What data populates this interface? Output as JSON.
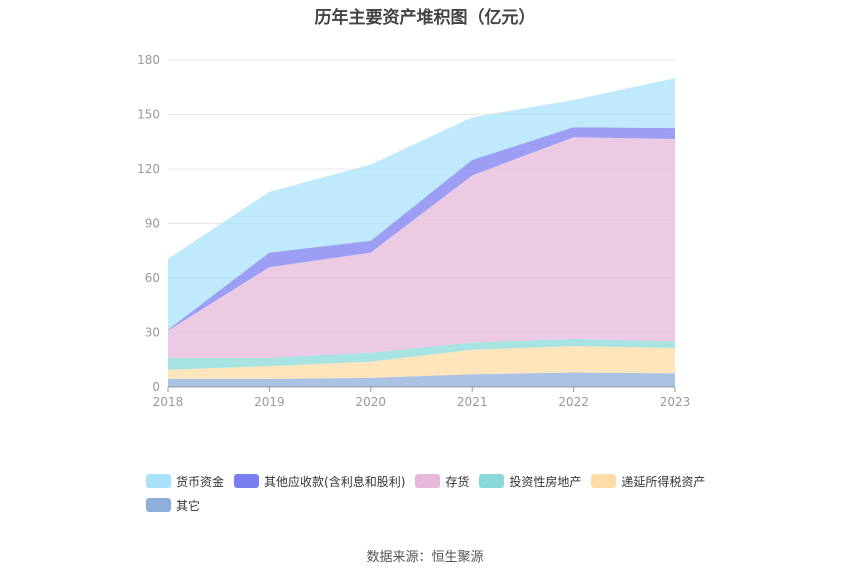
{
  "chart_data": {
    "type": "area",
    "stacked": true,
    "title": "历年主要资产堆积图（亿元）",
    "categories": [
      "2018",
      "2019",
      "2020",
      "2021",
      "2022",
      "2023"
    ],
    "ylim": [
      0,
      180
    ],
    "yticks": [
      0,
      30,
      60,
      90,
      120,
      150,
      180
    ],
    "grid": true,
    "legend_position": "bottom",
    "series": [
      {
        "name": "其它",
        "color": "#8eaedb",
        "values": [
          4.5,
          4.5,
          5,
          7,
          8,
          7.5
        ]
      },
      {
        "name": "递延所得税资产",
        "color": "#fedca6",
        "values": [
          5,
          7,
          9,
          13.5,
          14.5,
          14
        ]
      },
      {
        "name": "投资性房地产",
        "color": "#8ad9da",
        "values": [
          6.5,
          4.5,
          5,
          4,
          4,
          3.5
        ]
      },
      {
        "name": "存货",
        "color": "#e7b8d9",
        "values": [
          15,
          50,
          55,
          92,
          111,
          111.5
        ]
      },
      {
        "name": "其他应收款(含利息和股利)",
        "color": "#7b7ef0",
        "values": [
          0.5,
          8,
          6.5,
          8.5,
          5.5,
          6
        ]
      },
      {
        "name": "货币资金",
        "color": "#a9e3fb",
        "values": [
          39,
          33.5,
          42,
          23.5,
          15,
          27.5
        ]
      }
    ],
    "legend_order": [
      "货币资金",
      "其他应收款(含利息和股利)",
      "存货",
      "投资性房地产",
      "递延所得税资产",
      "其它"
    ]
  },
  "source_text": "数据来源：恒生聚源"
}
